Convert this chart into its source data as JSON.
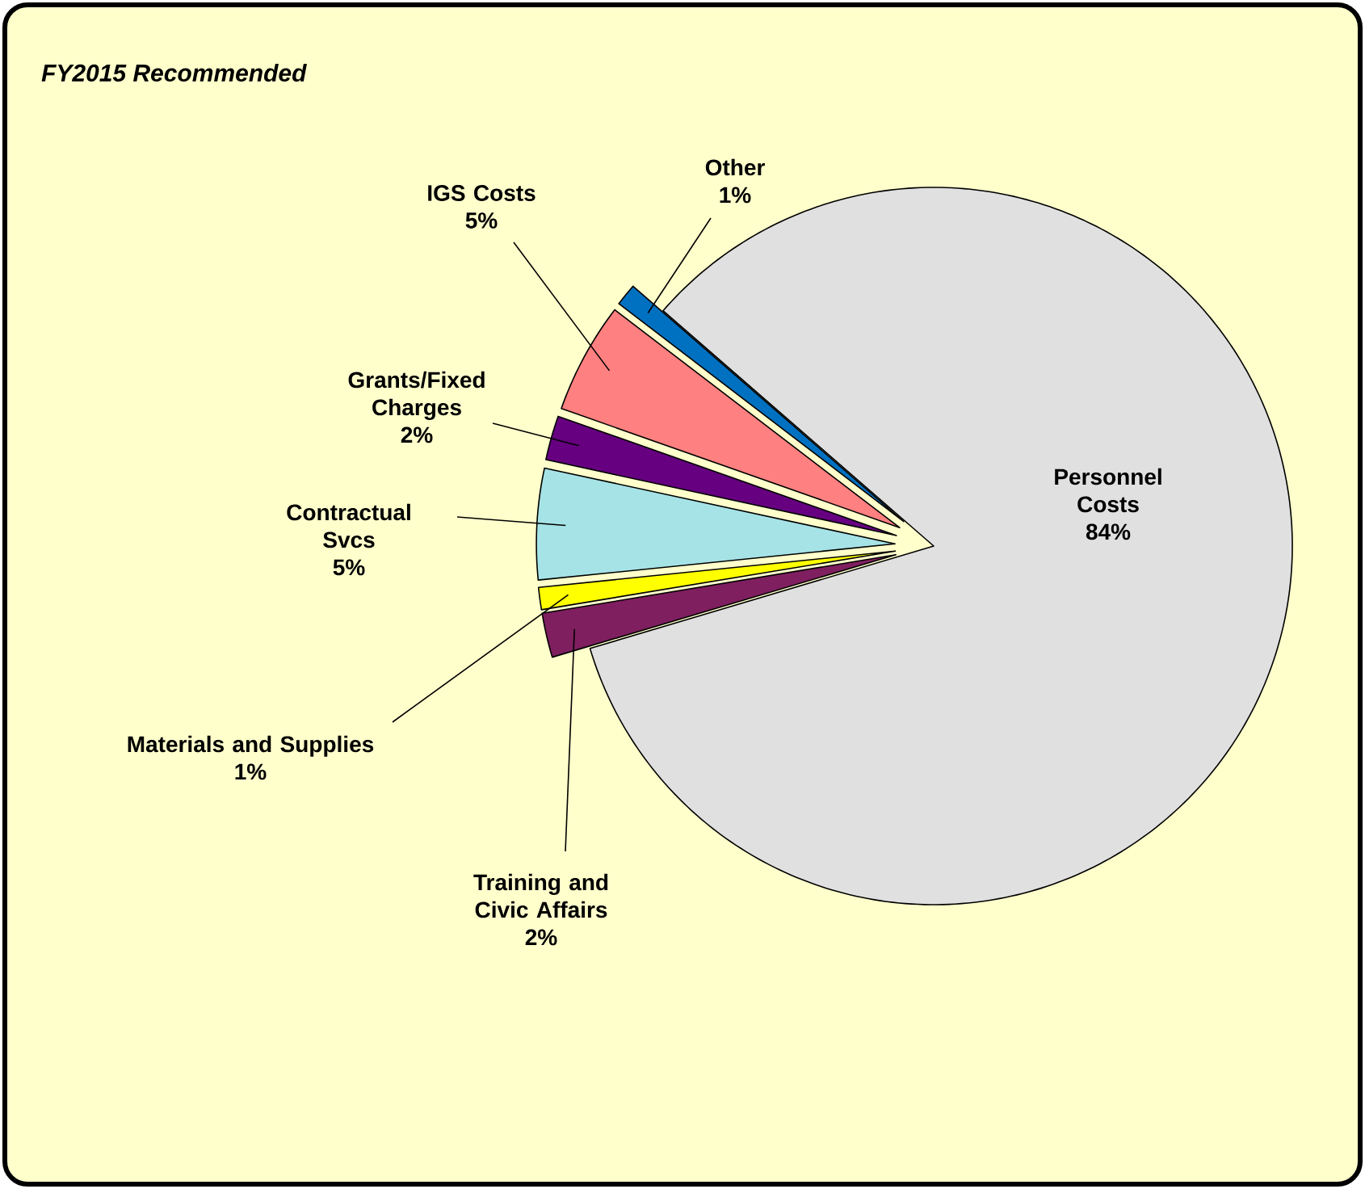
{
  "chart_data": {
    "type": "pie",
    "title": "FY2015 Recommended",
    "categories": [
      "Personnel Costs",
      "Training and Civic Affairs",
      "Materials and Supplies",
      "Contractual Svcs",
      "Grants/Fixed Charges",
      "IGS Costs",
      "Other"
    ],
    "values": [
      84,
      2,
      1,
      5,
      2,
      5,
      1
    ],
    "value_labels": [
      "84%",
      "2%",
      "1%",
      "5%",
      "2%",
      "5%",
      "1%"
    ],
    "colors": [
      "#e0e0e0",
      "#7f1f5f",
      "#ffff00",
      "#a6e3e6",
      "#660080",
      "#ff8080",
      "#0070c0"
    ]
  }
}
